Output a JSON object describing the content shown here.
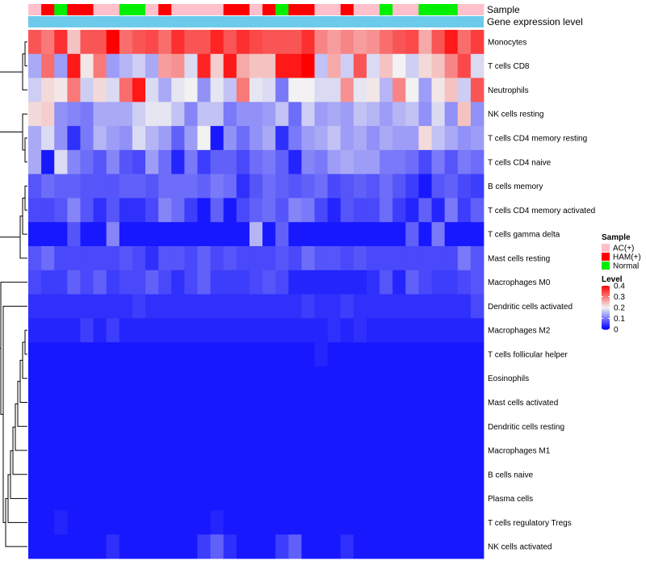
{
  "chart_data": {
    "type": "heatmap",
    "annotation_tracks": [
      "Sample",
      "Gene expression level"
    ],
    "sample_groups": [
      "AC",
      "HAM",
      "Normal",
      "HAM",
      "HAM",
      "AC",
      "AC",
      "Normal",
      "Normal",
      "AC",
      "HAM",
      "AC",
      "AC",
      "AC",
      "AC",
      "HAM",
      "HAM",
      "AC",
      "HAM",
      "Normal",
      "HAM",
      "HAM",
      "AC",
      "AC",
      "HAM",
      "AC",
      "AC",
      "Normal",
      "AC",
      "AC",
      "Normal",
      "Normal",
      "Normal",
      "AC",
      "AC"
    ],
    "rows": [
      "Monocytes",
      "T cells CD8",
      "Neutrophils",
      "NK cells resting",
      "T cells CD4 memory resting",
      "T cells CD4 naive",
      "B cells memory",
      "T cells CD4 memory activated",
      "T cells gamma delta",
      "Mast cells resting",
      "Macrophages M0",
      "Dendritic cells activated",
      "Macrophages M2",
      "T cells follicular helper",
      "Eosinophils",
      "Mast cells activated",
      "Dendritic cells resting",
      "Macrophages M1",
      "B cells naive",
      "Plasma cells",
      "T cells regulatory  Tregs",
      "NK cells activated"
    ],
    "values": [
      [
        0.33,
        0.3,
        0.36,
        0.24,
        0.33,
        0.33,
        0.4,
        0.31,
        0.33,
        0.34,
        0.31,
        0.36,
        0.33,
        0.33,
        0.37,
        0.33,
        0.36,
        0.34,
        0.33,
        0.33,
        0.33,
        0.36,
        0.29,
        0.27,
        0.29,
        0.27,
        0.28,
        0.31,
        0.33,
        0.34,
        0.26,
        0.33,
        0.38,
        0.31,
        0.35
      ],
      [
        0.14,
        0.31,
        0.13,
        0.38,
        0.21,
        0.3,
        0.13,
        0.15,
        0.17,
        0.14,
        0.27,
        0.28,
        0.18,
        0.37,
        0.23,
        0.38,
        0.26,
        0.24,
        0.24,
        0.38,
        0.38,
        0.4,
        0.16,
        0.26,
        0.17,
        0.33,
        0.18,
        0.24,
        0.2,
        0.17,
        0.22,
        0.24,
        0.29,
        0.34,
        0.18
      ],
      [
        0.17,
        0.22,
        0.21,
        0.3,
        0.17,
        0.22,
        0.18,
        0.31,
        0.38,
        0.18,
        0.14,
        0.19,
        0.2,
        0.12,
        0.19,
        0.16,
        0.3,
        0.19,
        0.18,
        0.1,
        0.2,
        0.2,
        0.18,
        0.18,
        0.28,
        0.19,
        0.21,
        0.15,
        0.29,
        0.2,
        0.13,
        0.21,
        0.24,
        0.17,
        0.33
      ],
      [
        0.22,
        0.23,
        0.12,
        0.11,
        0.1,
        0.14,
        0.14,
        0.14,
        0.17,
        0.19,
        0.19,
        0.16,
        0.11,
        0.16,
        0.16,
        0.1,
        0.12,
        0.12,
        0.13,
        0.16,
        0.09,
        0.17,
        0.13,
        0.14,
        0.13,
        0.16,
        0.15,
        0.13,
        0.15,
        0.16,
        0.12,
        0.18,
        0.12,
        0.24,
        0.12
      ],
      [
        0.14,
        0.18,
        0.12,
        0.04,
        0.1,
        0.15,
        0.13,
        0.12,
        0.18,
        0.15,
        0.13,
        0.08,
        0.13,
        0.2,
        0.02,
        0.12,
        0.09,
        0.12,
        0.14,
        0.04,
        0.1,
        0.13,
        0.14,
        0.16,
        0.13,
        0.14,
        0.12,
        0.14,
        0.13,
        0.13,
        0.22,
        0.16,
        0.14,
        0.12,
        0.13
      ],
      [
        0.14,
        0.02,
        0.18,
        0.11,
        0.09,
        0.07,
        0.11,
        0.07,
        0.06,
        0.13,
        0.09,
        0.03,
        0.1,
        0.05,
        0.08,
        0.08,
        0.06,
        0.09,
        0.1,
        0.08,
        0.03,
        0.11,
        0.1,
        0.13,
        0.14,
        0.13,
        0.13,
        0.1,
        0.1,
        0.09,
        0.06,
        0.1,
        0.07,
        0.1,
        0.09
      ],
      [
        0.07,
        0.09,
        0.08,
        0.08,
        0.07,
        0.07,
        0.07,
        0.08,
        0.08,
        0.07,
        0.09,
        0.09,
        0.09,
        0.08,
        0.1,
        0.09,
        0.04,
        0.07,
        0.09,
        0.08,
        0.07,
        0.08,
        0.09,
        0.06,
        0.07,
        0.08,
        0.07,
        0.09,
        0.07,
        0.05,
        0.02,
        0.07,
        0.08,
        0.06,
        0.05
      ],
      [
        0.06,
        0.06,
        0.07,
        0.11,
        0.07,
        0.04,
        0.07,
        0.04,
        0.04,
        0.06,
        0.11,
        0.09,
        0.05,
        0.02,
        0.08,
        0.02,
        0.06,
        0.08,
        0.09,
        0.07,
        0.11,
        0.1,
        0.06,
        0.03,
        0.07,
        0.06,
        0.06,
        0.09,
        0.05,
        0.03,
        0.08,
        0.03,
        0.1,
        0.05,
        0.08
      ],
      [
        0.02,
        0.02,
        0.02,
        0.07,
        0.02,
        0.02,
        0.11,
        0.02,
        0.02,
        0.02,
        0.02,
        0.02,
        0.02,
        0.02,
        0.02,
        0.02,
        0.02,
        0.15,
        0.02,
        0.08,
        0.02,
        0.02,
        0.02,
        0.02,
        0.02,
        0.02,
        0.02,
        0.02,
        0.02,
        0.08,
        0.02,
        0.1,
        0.02,
        0.02,
        0.02
      ],
      [
        0.07,
        0.09,
        0.06,
        0.06,
        0.06,
        0.06,
        0.06,
        0.07,
        0.06,
        0.04,
        0.07,
        0.07,
        0.06,
        0.08,
        0.06,
        0.07,
        0.06,
        0.06,
        0.06,
        0.07,
        0.06,
        0.09,
        0.07,
        0.07,
        0.06,
        0.07,
        0.06,
        0.06,
        0.06,
        0.06,
        0.06,
        0.06,
        0.06,
        0.1,
        0.07
      ],
      [
        0.06,
        0.05,
        0.05,
        0.08,
        0.06,
        0.08,
        0.05,
        0.06,
        0.06,
        0.08,
        0.06,
        0.04,
        0.06,
        0.08,
        0.05,
        0.05,
        0.05,
        0.06,
        0.07,
        0.06,
        0.03,
        0.03,
        0.03,
        0.03,
        0.03,
        0.03,
        0.04,
        0.07,
        0.03,
        0.08,
        0.06,
        0.05,
        0.05,
        0.06,
        0.07
      ],
      [
        0.04,
        0.04,
        0.04,
        0.04,
        0.04,
        0.04,
        0.04,
        0.04,
        0.05,
        0.04,
        0.04,
        0.04,
        0.04,
        0.04,
        0.04,
        0.04,
        0.04,
        0.04,
        0.04,
        0.04,
        0.04,
        0.05,
        0.04,
        0.04,
        0.05,
        0.04,
        0.04,
        0.04,
        0.04,
        0.04,
        0.04,
        0.04,
        0.04,
        0.04,
        0.06
      ],
      [
        0.03,
        0.03,
        0.03,
        0.03,
        0.05,
        0.03,
        0.05,
        0.03,
        0.03,
        0.03,
        0.03,
        0.03,
        0.03,
        0.03,
        0.03,
        0.03,
        0.03,
        0.03,
        0.03,
        0.03,
        0.03,
        0.03,
        0.03,
        0.04,
        0.03,
        0.04,
        0.03,
        0.03,
        0.03,
        0.03,
        0.03,
        0.03,
        0.03,
        0.03,
        0.03
      ],
      [
        0.02,
        0.02,
        0.02,
        0.02,
        0.02,
        0.02,
        0.02,
        0.02,
        0.02,
        0.02,
        0.02,
        0.02,
        0.02,
        0.02,
        0.02,
        0.02,
        0.02,
        0.02,
        0.02,
        0.02,
        0.02,
        0.02,
        0.03,
        0.02,
        0.02,
        0.02,
        0.02,
        0.02,
        0.02,
        0.02,
        0.02,
        0.02,
        0.02,
        0.02,
        0.02
      ],
      [
        0.02,
        0.02,
        0.02,
        0.02,
        0.02,
        0.02,
        0.02,
        0.02,
        0.02,
        0.02,
        0.02,
        0.02,
        0.02,
        0.02,
        0.02,
        0.02,
        0.02,
        0.02,
        0.02,
        0.02,
        0.02,
        0.02,
        0.02,
        0.02,
        0.02,
        0.02,
        0.02,
        0.02,
        0.02,
        0.02,
        0.02,
        0.02,
        0.02,
        0.02,
        0.02
      ],
      [
        0.02,
        0.02,
        0.02,
        0.02,
        0.02,
        0.02,
        0.02,
        0.02,
        0.02,
        0.02,
        0.02,
        0.02,
        0.02,
        0.02,
        0.02,
        0.02,
        0.02,
        0.02,
        0.02,
        0.02,
        0.02,
        0.02,
        0.02,
        0.02,
        0.02,
        0.02,
        0.02,
        0.02,
        0.02,
        0.02,
        0.02,
        0.02,
        0.02,
        0.02,
        0.02
      ],
      [
        0.02,
        0.02,
        0.02,
        0.02,
        0.02,
        0.02,
        0.02,
        0.02,
        0.02,
        0.02,
        0.02,
        0.02,
        0.02,
        0.02,
        0.02,
        0.02,
        0.02,
        0.02,
        0.02,
        0.02,
        0.02,
        0.02,
        0.02,
        0.02,
        0.02,
        0.02,
        0.02,
        0.02,
        0.02,
        0.02,
        0.02,
        0.02,
        0.02,
        0.02,
        0.02
      ],
      [
        0.02,
        0.02,
        0.02,
        0.02,
        0.02,
        0.02,
        0.02,
        0.02,
        0.02,
        0.02,
        0.02,
        0.02,
        0.02,
        0.02,
        0.02,
        0.02,
        0.02,
        0.02,
        0.02,
        0.02,
        0.02,
        0.02,
        0.02,
        0.02,
        0.02,
        0.02,
        0.02,
        0.02,
        0.02,
        0.02,
        0.02,
        0.02,
        0.02,
        0.02,
        0.02
      ],
      [
        0.02,
        0.02,
        0.02,
        0.02,
        0.02,
        0.02,
        0.02,
        0.02,
        0.02,
        0.02,
        0.02,
        0.02,
        0.02,
        0.02,
        0.02,
        0.02,
        0.02,
        0.02,
        0.02,
        0.02,
        0.02,
        0.02,
        0.02,
        0.02,
        0.02,
        0.02,
        0.02,
        0.02,
        0.02,
        0.02,
        0.02,
        0.02,
        0.02,
        0.02,
        0.02
      ],
      [
        0.02,
        0.02,
        0.02,
        0.02,
        0.02,
        0.02,
        0.02,
        0.02,
        0.02,
        0.02,
        0.02,
        0.02,
        0.02,
        0.02,
        0.02,
        0.02,
        0.02,
        0.02,
        0.02,
        0.02,
        0.02,
        0.02,
        0.02,
        0.02,
        0.02,
        0.02,
        0.02,
        0.02,
        0.02,
        0.02,
        0.02,
        0.02,
        0.02,
        0.02,
        0.02
      ],
      [
        0.02,
        0.02,
        0.03,
        0.02,
        0.02,
        0.02,
        0.02,
        0.02,
        0.02,
        0.02,
        0.02,
        0.02,
        0.02,
        0.02,
        0.03,
        0.02,
        0.02,
        0.02,
        0.02,
        0.02,
        0.02,
        0.02,
        0.02,
        0.02,
        0.02,
        0.02,
        0.02,
        0.02,
        0.02,
        0.02,
        0.02,
        0.02,
        0.02,
        0.02,
        0.02
      ],
      [
        0.02,
        0.02,
        0.02,
        0.02,
        0.02,
        0.02,
        0.04,
        0.02,
        0.02,
        0.02,
        0.02,
        0.02,
        0.02,
        0.05,
        0.08,
        0.04,
        0.02,
        0.02,
        0.02,
        0.05,
        0.08,
        0.02,
        0.02,
        0.02,
        0.04,
        0.02,
        0.02,
        0.02,
        0.02,
        0.02,
        0.02,
        0.02,
        0.02,
        0.02,
        0.02
      ]
    ],
    "legend": {
      "sample_title": "Sample",
      "groups": [
        {
          "key": "AC",
          "label": "AC(+)",
          "color": "#FFC0CB"
        },
        {
          "key": "HAM",
          "label": "HAM(+)",
          "color": "#FF0000"
        },
        {
          "key": "Normal",
          "label": "Normal",
          "color": "#00EE00"
        }
      ],
      "level_title": "Level",
      "level_ticks": [
        "0.4",
        "0.3",
        "0.2",
        "0.1",
        "0"
      ],
      "level_range": [
        0,
        0.4
      ]
    },
    "colors": {
      "low": "#0000FF",
      "mid": "#F2F2F2",
      "high": "#FF0000",
      "gene_expression_bar": "#6CCBEB"
    },
    "color_midpoint": 0.2,
    "dendrogram": "hierarchical clustering of rows (left side)"
  }
}
